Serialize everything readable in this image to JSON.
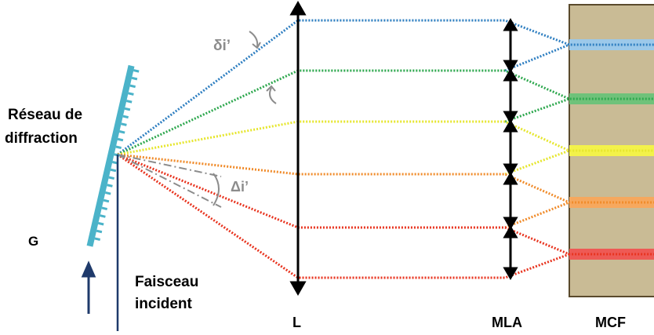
{
  "labels": {
    "grating_line1": "Réseau de",
    "grating_line2": "diffraction",
    "G": "G",
    "beam_line1": "Faisceau",
    "beam_line2": "incident",
    "lens": "L",
    "mla": "MLA",
    "mcf": "MCF",
    "delta_i_small": "δi’",
    "delta_i_big": "Δi’"
  },
  "colors": {
    "grating": "#4bb3c9",
    "beam": "#1f3a6b",
    "mcf_fill": "#c9bb95",
    "mcf_border": "#5a4a2c",
    "angle_grey": "#8c8c8c",
    "rays": [
      "#2f7fc1",
      "#2fa84f",
      "#e6e62e",
      "#f08b2a",
      "#e8341f"
    ],
    "cores": [
      "#9cc9ea",
      "#6fc27a",
      "#f3f24a",
      "#f6a85e",
      "#ee5a55"
    ]
  }
}
